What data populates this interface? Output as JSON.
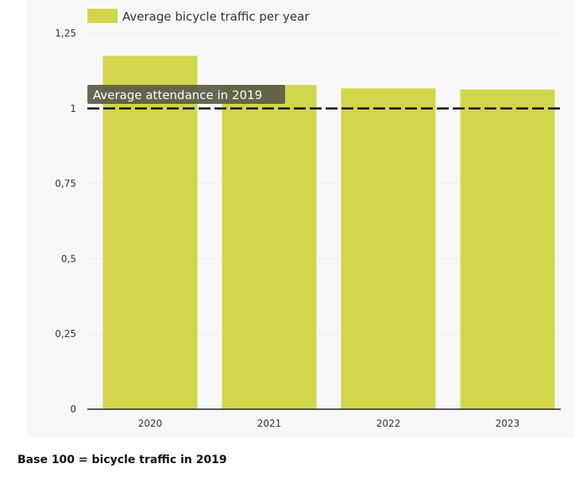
{
  "chart_data": {
    "type": "bar",
    "categories": [
      "2020",
      "2021",
      "2022",
      "2023"
    ],
    "series": [
      {
        "name": "Average bicycle traffic per year",
        "values": [
          1.175,
          1.078,
          1.067,
          1.063
        ]
      }
    ],
    "ylim": [
      0,
      1.25
    ],
    "yticks": [
      "0",
      "0,25",
      "0,5",
      "0,75",
      "1",
      "1,25"
    ],
    "ytick_values": [
      0,
      0.25,
      0.5,
      0.75,
      1,
      1.25
    ],
    "reference_line": {
      "value": 1,
      "label": "Average attendance in 2019",
      "style": "dashed"
    },
    "legend": "top-left",
    "grid": true,
    "colors": {
      "bar": "#d2d64a",
      "reference": "#000000",
      "annotation_bg": "#5a5a48"
    }
  },
  "footnote": "Base 100 = bicycle traffic in 2019"
}
